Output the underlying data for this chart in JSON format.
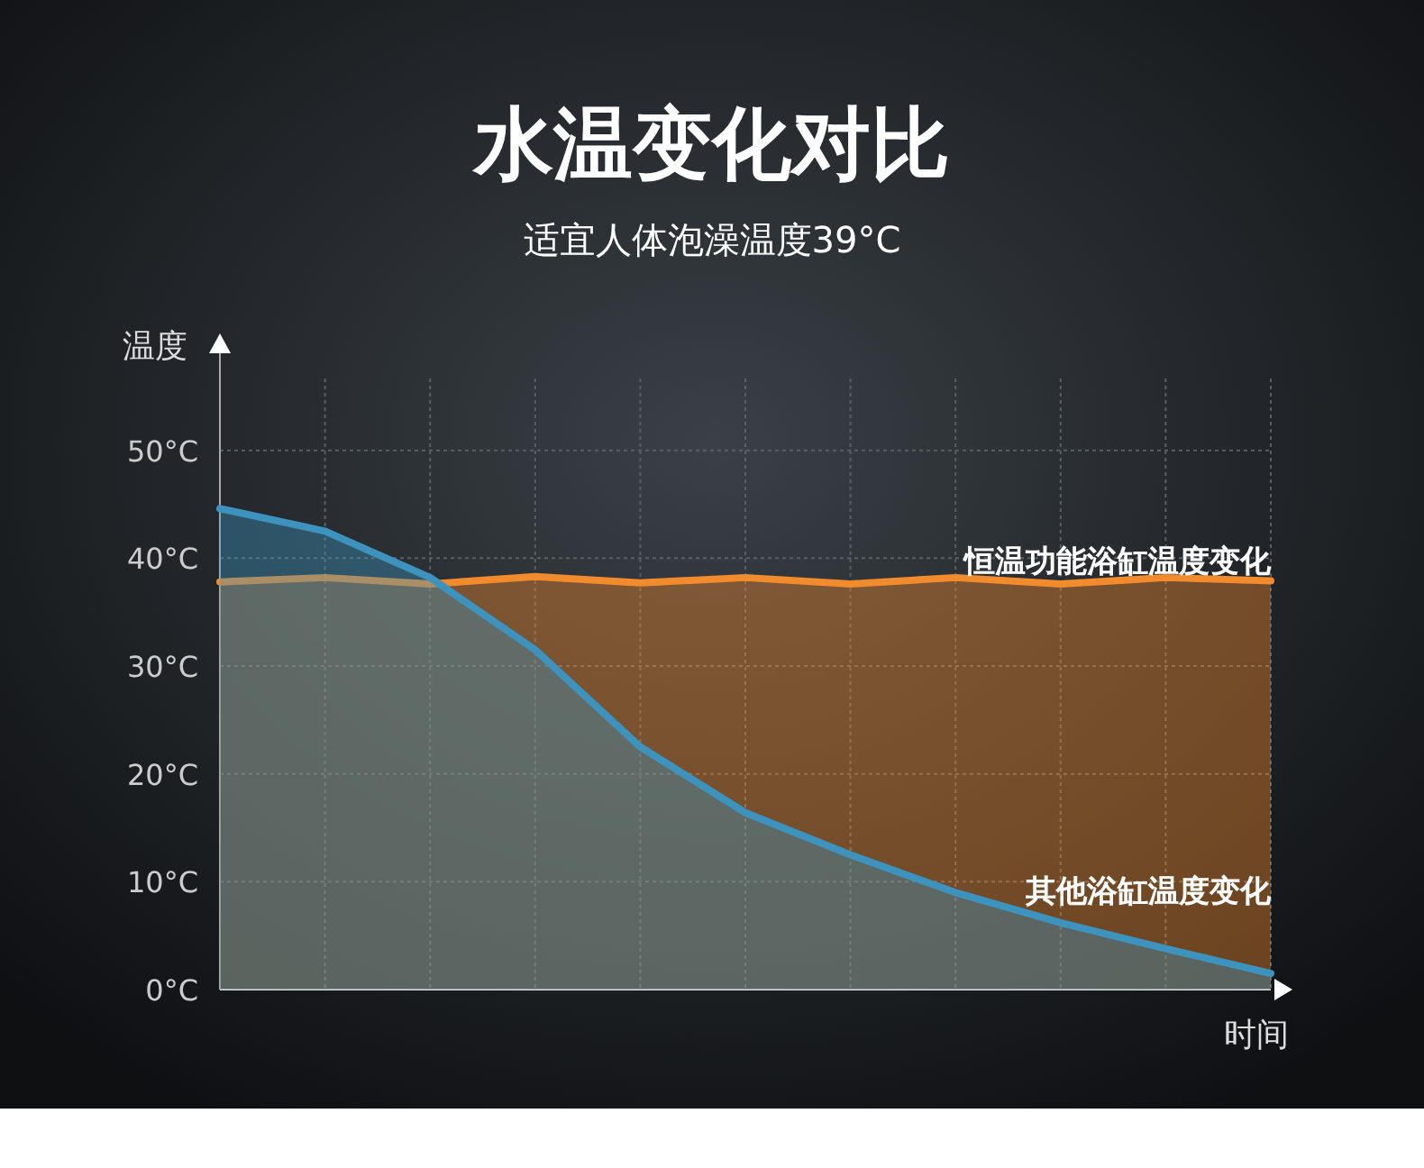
{
  "chart_data": {
    "type": "area",
    "title": "水温变化对比",
    "subtitle": "适宜人体泡澡温度39°C",
    "xlabel": "时间",
    "ylabel": "温度",
    "categories": [
      null,
      null,
      null,
      null,
      null,
      null,
      null,
      null,
      null,
      null,
      null
    ],
    "series": [
      {
        "name": "恒温功能浴缸温度变化",
        "color": "#f28a2e",
        "values": [
          37.8,
          38.2,
          37.6,
          38.3,
          37.7,
          38.2,
          37.6,
          38.2,
          37.6,
          38.2,
          37.9
        ]
      },
      {
        "name": "其他浴缸温度变化",
        "color": "#3d93bd",
        "values": [
          44.6,
          42.5,
          38.2,
          31.5,
          22.5,
          16.4,
          12.5,
          9.0,
          6.2,
          3.8,
          1.5
        ]
      }
    ],
    "ylim": [
      0,
      60
    ],
    "yticks": [
      {
        "value": 0,
        "label": "0°C"
      },
      {
        "value": 10,
        "label": "10°C"
      },
      {
        "value": 20,
        "label": "20°C"
      },
      {
        "value": 30,
        "label": "30°C"
      },
      {
        "value": 40,
        "label": "40°C"
      },
      {
        "value": 50,
        "label": "50°C"
      }
    ],
    "grid": true
  }
}
